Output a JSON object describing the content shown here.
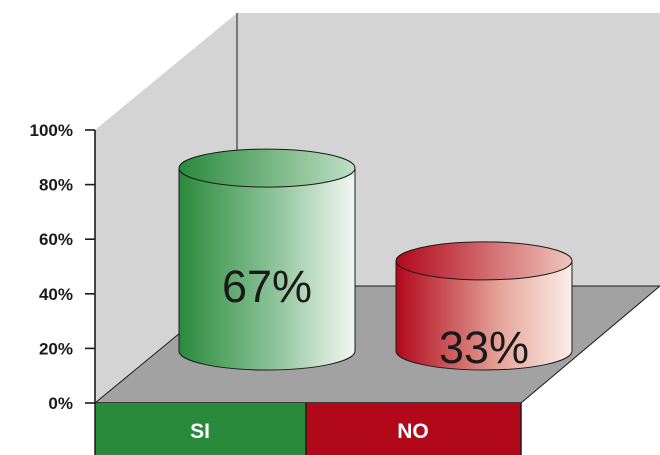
{
  "chart_data": {
    "type": "bar",
    "style": "3d-cylinder",
    "categories": [
      "SI",
      "NO"
    ],
    "values": [
      67,
      33
    ],
    "data_labels": [
      "67%",
      "33%"
    ],
    "ylim": [
      0,
      100
    ],
    "yticks": [
      0,
      20,
      40,
      60,
      80,
      100
    ],
    "ytick_labels": [
      "0%",
      "20%",
      "40%",
      "60%",
      "80%",
      "100%"
    ],
    "colors": {
      "SI": "#2a8a3c",
      "NO": "#b1081a",
      "walls": "#d4d4d4",
      "floor": "#a2a2a2",
      "axis": "#1a1a1a"
    },
    "grid": false,
    "legend": "none"
  }
}
